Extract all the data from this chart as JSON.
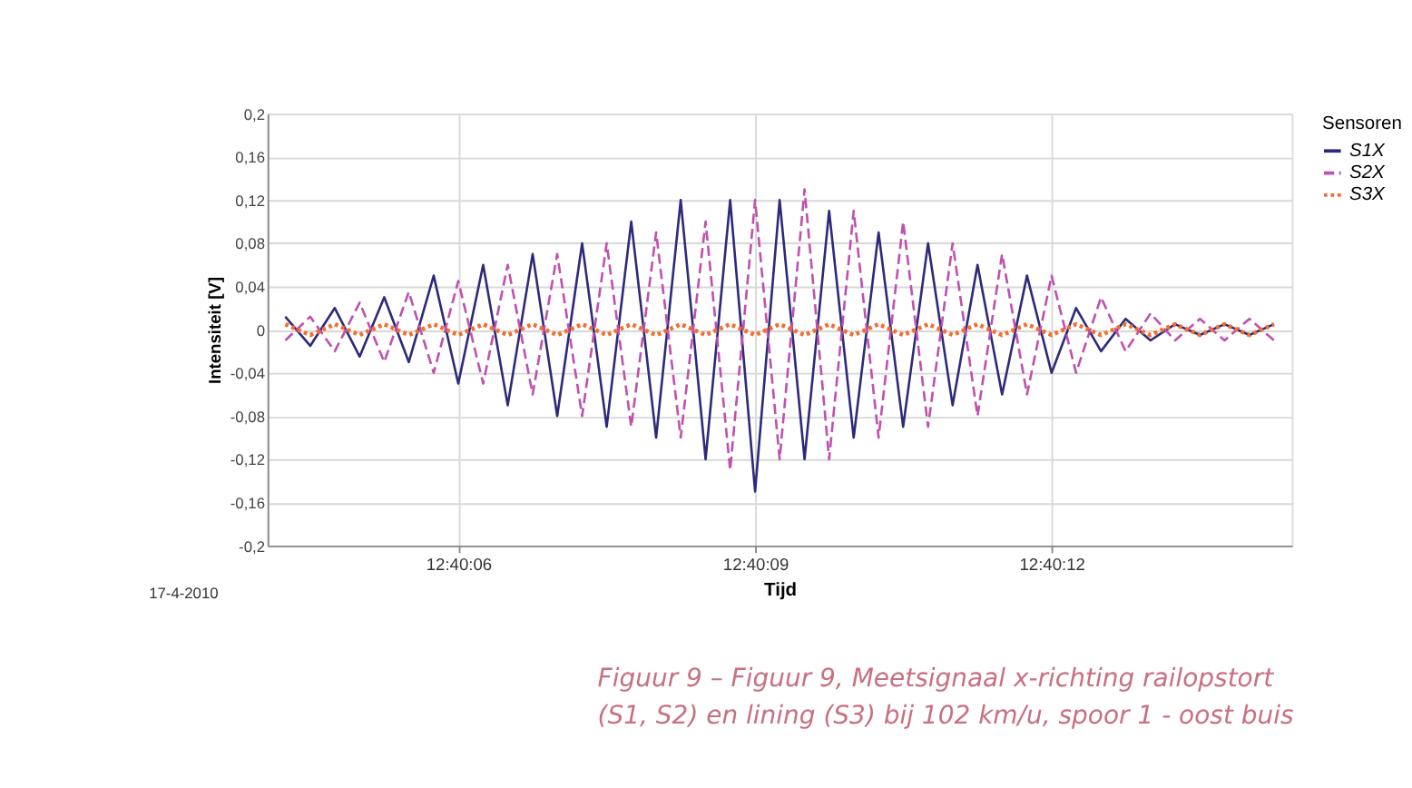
{
  "chart_data": {
    "type": "line",
    "xlabel": "Tijd",
    "ylabel": "Intensiteit [V]",
    "legend_title": "Sensoren",
    "legend": "right",
    "grid": true,
    "x": [
      12.667847,
      12.667917,
      12.667986,
      12.668056,
      12.668125,
      12.668194,
      12.668264,
      12.668333,
      12.668403,
      12.668472,
      12.668542,
      12.668611,
      12.668681,
      12.66875,
      12.668819,
      12.668889,
      12.668958,
      12.669028,
      12.669097,
      12.669167,
      12.669236,
      12.669306,
      12.669375,
      12.669444,
      12.669514,
      12.669583,
      12.669653,
      12.669722,
      12.669792,
      12.669861,
      12.669931,
      12.67,
      12.670069,
      12.670139,
      12.670208,
      12.670278,
      12.670347,
      12.670417,
      12.670486,
      12.670556,
      12.670625
    ],
    "series": [
      {
        "name": "S1X",
        "color": "#2e2a7a",
        "line_style": "solid",
        "values": [
          0.012,
          -0.015,
          0.02,
          -0.025,
          0.03,
          -0.03,
          0.05,
          -0.05,
          0.06,
          -0.07,
          0.07,
          -0.08,
          0.08,
          -0.09,
          0.1,
          -0.1,
          0.12,
          -0.12,
          0.12,
          -0.15,
          0.12,
          -0.12,
          0.11,
          -0.1,
          0.09,
          -0.09,
          0.08,
          -0.07,
          0.06,
          -0.06,
          0.05,
          -0.04,
          0.02,
          -0.02,
          0.01,
          -0.01,
          0.005,
          -0.005,
          0.005,
          -0.005,
          0.005
        ]
      },
      {
        "name": "S2X",
        "color": "#c050b0",
        "line_style": "dashed",
        "values": [
          -0.01,
          0.012,
          -0.02,
          0.025,
          -0.03,
          0.035,
          -0.04,
          0.045,
          -0.05,
          0.06,
          -0.06,
          0.07,
          -0.08,
          0.08,
          -0.09,
          0.09,
          -0.1,
          0.1,
          -0.13,
          0.12,
          -0.12,
          0.13,
          -0.12,
          0.11,
          -0.1,
          0.1,
          -0.09,
          0.08,
          -0.08,
          0.07,
          -0.06,
          0.05,
          -0.04,
          0.03,
          -0.02,
          0.015,
          -0.01,
          0.01,
          -0.01,
          0.01,
          -0.01
        ]
      },
      {
        "name": "S3X",
        "color": "#f07030",
        "line_style": "dotted",
        "values": [
          0.005,
          -0.005,
          0.005,
          -0.005,
          0.005,
          -0.005,
          0.005,
          -0.005,
          0.005,
          -0.005,
          0.005,
          -0.005,
          0.005,
          -0.005,
          0.005,
          -0.005,
          0.005,
          -0.005,
          0.005,
          -0.005,
          0.005,
          -0.005,
          0.005,
          -0.005,
          0.005,
          -0.005,
          0.005,
          -0.005,
          0.005,
          -0.005,
          0.005,
          -0.005,
          0.005,
          -0.005,
          0.005,
          -0.005,
          0.005,
          -0.005,
          0.005,
          -0.005,
          0.005
        ]
      }
    ],
    "xlim": [
      12.667797,
      12.670675
    ],
    "xticks": [
      {
        "value": 12.668333,
        "label": "12:40:06"
      },
      {
        "value": 12.669167,
        "label": "12:40:09"
      },
      {
        "value": 12.67,
        "label": "12:40:12"
      }
    ],
    "ylim": [
      -0.2,
      0.2
    ],
    "yticks": [
      {
        "value": -0.2,
        "label": "-0,2"
      },
      {
        "value": -0.16,
        "label": "-0,16"
      },
      {
        "value": -0.12,
        "label": "-0,12"
      },
      {
        "value": -0.08,
        "label": "-0,08"
      },
      {
        "value": -0.04,
        "label": "-0,04"
      },
      0,
      {
        "value": 0.04,
        "label": "0,04"
      },
      {
        "value": 0.08,
        "label": "0,08"
      },
      {
        "value": 0.12,
        "label": "0,12"
      },
      {
        "value": 0.16,
        "label": "0,16"
      },
      {
        "value": 0.2,
        "label": "0,2"
      }
    ],
    "annotations": [
      "17-4-2010",
      "Figuur 9 – Figuur 9, Meetsignaal x-richting railopstort",
      "(S1, S2) en lining (S3) bij 102 km/u, spoor 1 - oost buis"
    ]
  }
}
